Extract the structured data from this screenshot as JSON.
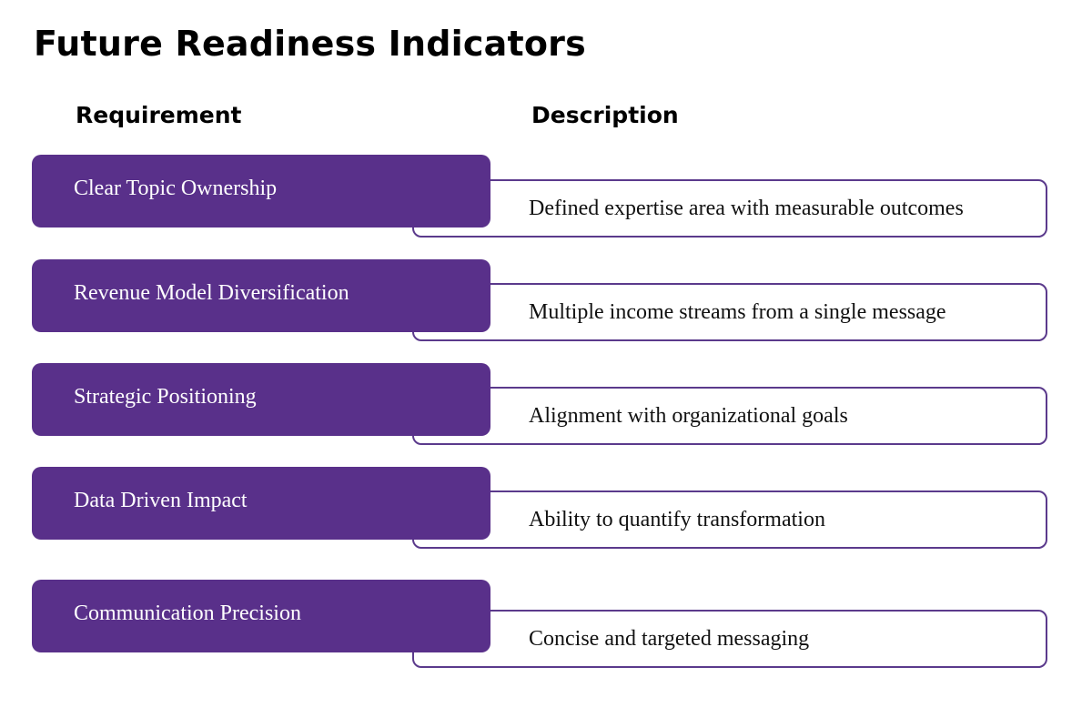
{
  "title": "Future Readiness Indicators",
  "headers": {
    "requirement": "Requirement",
    "description": "Description"
  },
  "rows": [
    {
      "requirement": "Clear Topic Ownership",
      "description": "Defined expertise area with measurable outcomes"
    },
    {
      "requirement": "Revenue Model Diversification",
      "description": "Multiple income streams from a single message"
    },
    {
      "requirement": "Strategic Positioning",
      "description": "Alignment with organizational goals"
    },
    {
      "requirement": "Data Driven Impact",
      "description": "Ability to quantify transformation"
    },
    {
      "requirement": "Communication Precision",
      "description": "Concise and targeted messaging"
    }
  ],
  "colors": {
    "accent": "#59308a",
    "outline": "#5b3a8c",
    "text": "#111111"
  }
}
